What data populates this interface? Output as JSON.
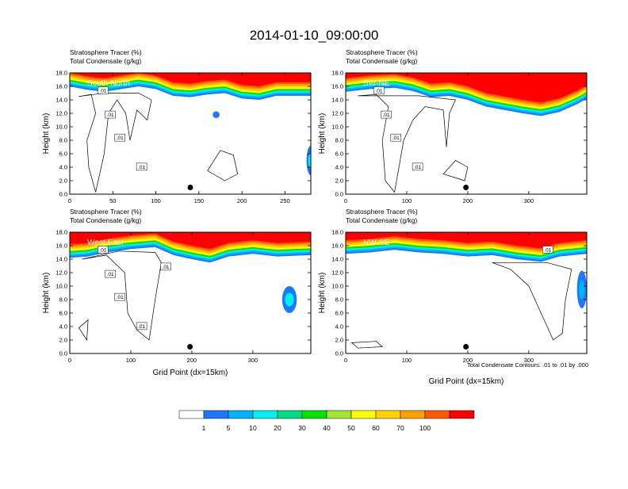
{
  "page": {
    "title": "2014-01-10_09:00:00",
    "footnote": "Total Condensate Contours: .01 to .01 by .000"
  },
  "colors": {
    "levels": [
      "#ffffff",
      "#1e78ff",
      "#00b4ff",
      "#00f0f0",
      "#00dc82",
      "#00e600",
      "#a0e632",
      "#ffff00",
      "#ffd200",
      "#ffa000",
      "#ff5a00",
      "#ff0000"
    ],
    "marker": "#000000",
    "contour": "#000000"
  },
  "legend": {
    "labels": [
      "1",
      "5",
      "10",
      "20",
      "30",
      "40",
      "50",
      "60",
      "70",
      "100"
    ]
  },
  "chart_data": [
    {
      "type": "heatmap",
      "panel_label": "South-North",
      "subtitle_line1": "Stratosphere Tracer   (%)",
      "subtitle_line2": "Total Condensate   (g/kg)",
      "ylabel": "Height (km)",
      "xlabel": "",
      "xlim": [
        0,
        280
      ],
      "ylim": [
        0,
        18
      ],
      "x_ticks": [
        "0",
        "50",
        "100",
        "150",
        "200",
        "250"
      ],
      "y_ticks": [
        "0.0",
        "2.0",
        "4.0",
        "6.0",
        "8.0",
        "10.0",
        "12.0",
        "14.0",
        "16.0",
        "18.0"
      ],
      "contour_labels": [
        ".01",
        ".01",
        ".01",
        ".01"
      ],
      "point_marker": {
        "x": 140,
        "y": 1.0
      }
    },
    {
      "type": "heatmap",
      "panel_label": "SW-NE",
      "subtitle_line1": "Stratosphere Tracer   (%)",
      "subtitle_line2": "Total Condensate   (g/kg)",
      "ylabel": "Height (km)",
      "xlabel": "",
      "xlim": [
        0,
        395
      ],
      "ylim": [
        0,
        18
      ],
      "x_ticks": [
        "0",
        "100",
        "200",
        "300"
      ],
      "y_ticks": [
        "0.0",
        "2.0",
        "4.0",
        "6.0",
        "8.0",
        "10.0",
        "12.0",
        "14.0",
        "16.0",
        "18.0"
      ],
      "contour_labels": [
        ".01",
        ".01",
        ".01",
        ".01"
      ],
      "point_marker": {
        "x": 197,
        "y": 1.0
      }
    },
    {
      "type": "heatmap",
      "panel_label": "West-East",
      "subtitle_line1": "Stratosphere Tracer   (%)",
      "subtitle_line2": "Total Condensate   (g/kg)",
      "ylabel": "Height (km)",
      "xlabel": "Grid Point (dx=15km)",
      "xlim": [
        0,
        395
      ],
      "ylim": [
        0,
        18
      ],
      "x_ticks": [
        "0",
        "100",
        "200",
        "300"
      ],
      "y_ticks": [
        "0.0",
        "2.0",
        "4.0",
        "6.0",
        "8.0",
        "10.0",
        "12.0",
        "14.0",
        "16.0",
        "18.0"
      ],
      "contour_labels": [
        ".01",
        ".01",
        ".01",
        ".01",
        ".01"
      ],
      "point_marker": {
        "x": 197,
        "y": 1.0
      }
    },
    {
      "type": "heatmap",
      "panel_label": "NW-SE",
      "subtitle_line1": "Stratosphere Tracer   (%)",
      "subtitle_line2": "Total Condensate   (g/kg)",
      "ylabel": "Height (km)",
      "xlabel": "Grid Point (dx=15km)",
      "xlim": [
        0,
        395
      ],
      "ylim": [
        0,
        18
      ],
      "x_ticks": [
        "0",
        "100",
        "200",
        "300"
      ],
      "y_ticks": [
        "0.0",
        "2.0",
        "4.0",
        "6.0",
        "8.0",
        "10.0",
        "12.0",
        "14.0",
        "16.0",
        "18.0"
      ],
      "contour_labels": [
        ".01"
      ],
      "point_marker": {
        "x": 197,
        "y": 1.0
      }
    }
  ]
}
